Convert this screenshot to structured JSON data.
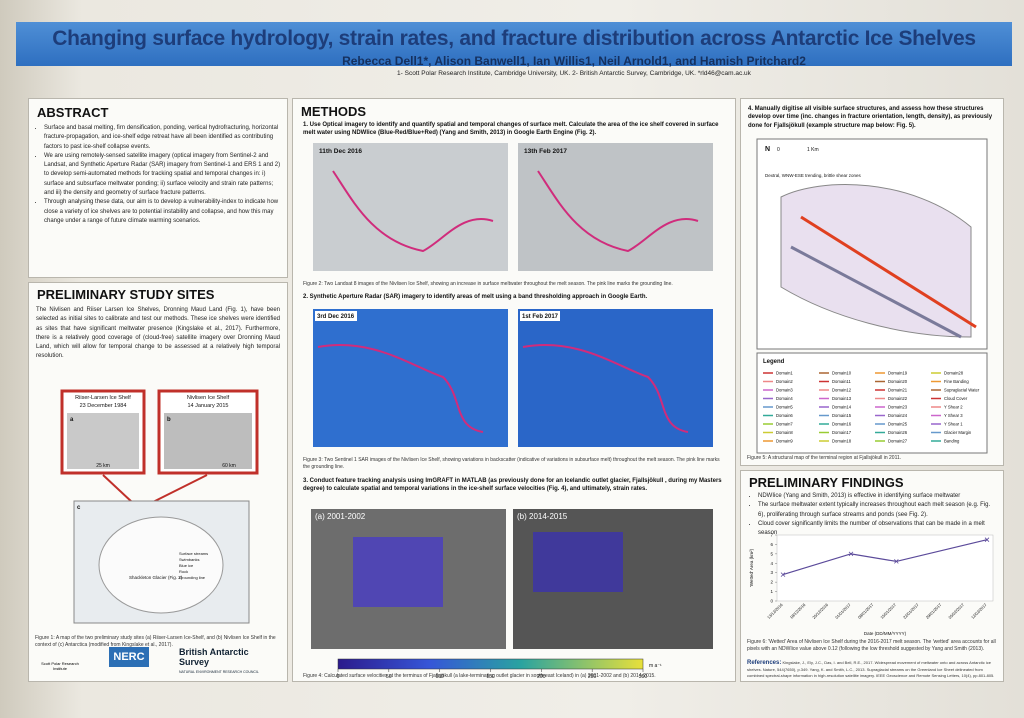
{
  "header": {
    "title": "Changing surface hydrology, strain rates, and fracture distribution across Antarctic Ice Shelves",
    "authors": "Rebecca Dell1*, Alison Banwell1, Ian Willis1, Neil Arnold1, and Hamish Pritchard2",
    "affiliation": "1- Scott Polar Research Institute, Cambridge University, UK. 2- British Antarctic Survey, Cambridge, UK. *rld46@cam.ac.uk"
  },
  "abstract": {
    "heading": "ABSTRACT",
    "bullets": [
      "Surface and basal melting, firn densification, ponding, vertical hydrofracturing, horizontal fracture-propagation, and ice-shelf edge retreat have all been identified as contributing factors to past ice-shelf collapse events.",
      "We are using remotely-sensed satellite imagery (optical imagery from Sentinel-2 and Landsat, and Synthetic Aperture Radar (SAR) imagery from Sentinel-1 and ERS 1 and 2) to develop semi-automated methods for tracking spatial and temporal changes in: i) surface and subsurface meltwater ponding; ii) surface velocity and strain rate patterns; and iii) the density and geometry of surface fracture patterns.",
      "Through analysing these data, our aim is to develop a vulnerability-index to indicate how close a variety of ice shelves are to potential instability and collapse, and how this may change under a range of future climate warming scenarios."
    ]
  },
  "study": {
    "heading": "PRELIMINARY STUDY SITES",
    "text": "The Nivlisen and Riiser Larsen Ice Shelves, Dronning Maud Land (Fig. 1), have been selected as initial sites to calibrate and test our methods. These ice shelves were identified as sites that have significant meltwater presence (Kingslake et al., 2017). Furthermore, there is a relatively good coverage of (cloud-free) satellite imagery over Dronning Maud Land, which will allow for temporal change to be assessed at a relatively high temporal resolution.",
    "panel_a": [
      "Riiser-Larsen Ice Shelf",
      "23 December 1984",
      "a",
      "25 km"
    ],
    "panel_b": [
      "Nivlisen Ice Shelf",
      "14 January 2015",
      "b",
      "60 km"
    ],
    "map_labels": [
      "c",
      "Shackleton Glacier (Fig. 2)",
      "Surface streams",
      "Swimbanks",
      "Blue ice",
      "Rock",
      "Grounding line"
    ],
    "caption": "Figure 1: A map of the two preliminary study sites (a) Riiser-Larsen Ice-Shelf, and (b) Nivlisen Ice Shelf in the context of (c) Antarctica (modified from Kingslake et al., 2017).",
    "logos": [
      "Scott Polar Research Institute",
      "NERC",
      "British Antarctic Survey",
      "NATURAL ENVIRONMENT RESEARCH COUNCIL"
    ]
  },
  "methods": {
    "heading": "METHODS",
    "step1": "1. Use Optical imagery to identify and quantify spatial and temporal changes of surface melt. Calculate the area of the ice shelf covered in surface melt water using NDWIice (Blue-Red/Blue+Red) (Yang and Smith, 2013) in Google Earth Engine (Fig. 2).",
    "img1": [
      "11th Dec 2016",
      "13th Feb 2017"
    ],
    "caption2": "Figure 2: Two Landsat 8 images of the Nivlisen Ice Shelf, showing an increase in surface meltwater throughout the melt season. The pink line marks the grounding line.",
    "step2": "2. Synthetic Aperture Radar (SAR) imagery to identify areas of melt using a band thresholding approach in Google Earth.",
    "img2": [
      "3rd Dec 2016",
      "1st Feb 2017"
    ],
    "caption3": "Figure 3: Two Sentinel 1 SAR images of the Nivlisen Ice Shelf, showing variations in backscatter (indicative of variations in subsurface melt) throughout the melt season. The pink line marks the grounding line.",
    "step3": "3. Conduct feature tracking analysis using ImGRAFT in MATLAB (as previously done for an Icelandic outlet glacier, Fjallsjökull , during my Masters degree) to calculate spatial and temporal variations in the ice-shelf surface velocities (Fig. 4), and ultimately, strain rates.",
    "img3": [
      "(a) 2001-2002",
      "(b) 2014-2015"
    ],
    "colorbar_ticks": [
      0,
      50,
      100,
      150,
      200,
      250,
      300
    ],
    "colorbar_unit": "m a⁻¹",
    "caption4": "Figure 4: Calculated surface velocities at the terminus of Fjallsjökull (a lake-terminating outlet glacier in south-east Iceland) in (a) 2001-2002 and (b) 2014-2015."
  },
  "right": {
    "step4": "4. Manually digitise all visible surface structures, and assess how these structures develop over time (inc. changes in fracture orientation, length, density), as previously done for Fjallsjökull (example structure map below: Fig. 5).",
    "map_labels": [
      "N",
      "0",
      "1 Km",
      "Dextral, WNW-ESE trending, brittle shear zones"
    ],
    "legend_title": "Legend",
    "legend": [
      "Domain1",
      "Domain2",
      "Domain3",
      "Domain4",
      "Domain5",
      "Domain6",
      "Domain7",
      "Domain8",
      "Domain9",
      "Domain10",
      "Domain11",
      "Domain12",
      "Domain13",
      "Domain14",
      "Domain15",
      "Domain16",
      "Domain17",
      "Domain18",
      "Domain19",
      "Domain20",
      "Domain21",
      "Domain22",
      "Domain23",
      "Domain24",
      "Domain25",
      "Domain26",
      "Domain27",
      "Domain28",
      "Fine Banding",
      "Supraglacial Water",
      "Cloud Cover",
      "Y Shear 2",
      "Y Shear 3",
      "Y Shear 1",
      "Glacier Margin",
      "Banding"
    ],
    "caption5": "Figure 5: A structural map of the terminal region at Fjallsjökull in 2011.",
    "findings_heading": "PRELIMINARY FINDINGS",
    "findings": [
      "NDWIice (Yang and Smith, 2013) is effective in identifying surface meltwater",
      "The surface meltwater extent typically increases throughout each melt season (e.g. Fig. 6), proliferating through surface streams and ponds (see Fig. 2).",
      "Cloud cover significantly limits the number of observations that can be made in a melt season"
    ],
    "chart": {
      "type": "line",
      "ylabel": "'Wetted' Area (km²)",
      "xlabel": "Date (DD/MM/YYYY)",
      "ylim": [
        0,
        7
      ],
      "yticks": [
        0,
        1,
        2,
        3,
        4,
        5,
        6,
        7
      ],
      "xticks": [
        "13/12/2016",
        "18/12/2016",
        "25/12/2016",
        "01/01/2017",
        "08/01/2017",
        "15/01/2017",
        "22/01/2017",
        "29/01/2017",
        "05/02/2017",
        "12/02/2017"
      ],
      "series": [
        {
          "color": "#5b4a9a",
          "x": [
            "13/12/2016",
            "01/01/2017",
            "15/01/2017",
            "12/02/2017"
          ],
          "values": [
            2.8,
            5.0,
            4.2,
            6.5
          ]
        }
      ]
    },
    "caption6": "Figure 6: 'Wetted' Area of Nivlisen Ice Shelf during the 2016-2017 melt season. The 'wetted' area accounts for all pixels with an NDWIice value above 0.12 (following the low threshold suggested by Yang and Smith (2013).",
    "references_heading": "References:",
    "references": "Kingslake, J., Ely, J.C., Das, I. and Bell, R.E., 2017. Widespread movement of meltwater onto and across Antarctic ice shelves. Nature, 544(7650), p.349. Yang, K. and Smith, L.C., 2013. Supraglacial streams on the Greenland Ice Sheet delineated from combined spectral-shape information in high-resolution satellite imagery. IEEE Geoscience and Remote Sensing Letters, 10(4), pp.801-805."
  }
}
